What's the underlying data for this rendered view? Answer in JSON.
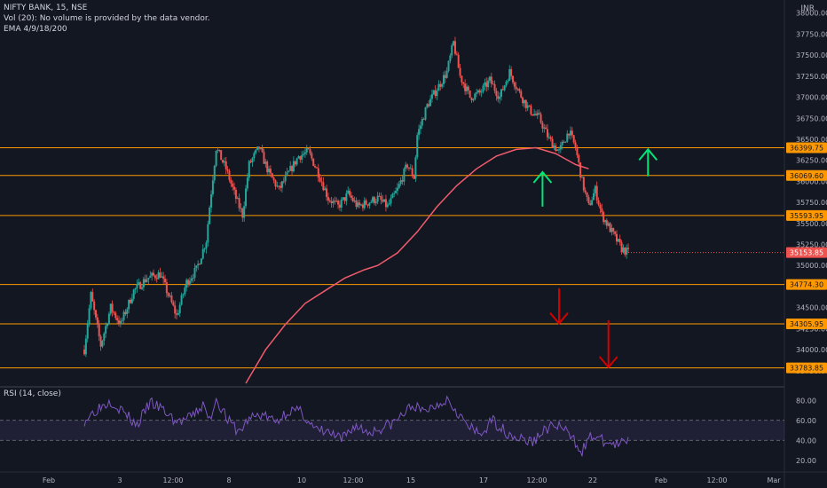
{
  "header": {
    "symbol_line": "NIFTY BANK, 15, NSE",
    "volume_line": "Vol (20): No volume is provided by the data vendor.",
    "ema_line": "EMA 4/9/18/200",
    "currency": "INR"
  },
  "rsi_panel": {
    "label": "RSI (14, close)",
    "ticks": [
      "80.00",
      "60.00",
      "40.00",
      "20.00"
    ],
    "upper_band": 60,
    "lower_band": 40
  },
  "colors": {
    "background": "#131722",
    "candle_up": "#26a69a",
    "candle_down": "#ef5350",
    "level_line": "#ff9800",
    "ema": "#f15b6c",
    "rsi": "#7e57c2",
    "arrow_up": "#00e676",
    "arrow_down": "#d50000"
  },
  "chart_data": {
    "type": "candlestick",
    "y_axis": {
      "min": 33600,
      "max": 38050,
      "ticks": [
        "38000.00",
        "37750.00",
        "37500.00",
        "37250.00",
        "37000.00",
        "36750.00",
        "36500.00",
        "36250.00",
        "36000.00",
        "35750.00",
        "35500.00",
        "35250.00",
        "35000.00",
        "34750.00",
        "34500.00",
        "34250.00",
        "34000.00",
        "33750.00"
      ]
    },
    "x_axis": {
      "labels": [
        "Feb",
        "3",
        "12:00",
        "8",
        "10",
        "12:00",
        "15",
        "17",
        "12:00",
        "22",
        "Feb",
        "12:00",
        "Mar"
      ]
    },
    "levels": [
      36399.75,
      36069.6,
      35593.95,
      34774.3,
      34305.95,
      33783.85
    ],
    "level_labels": [
      "36399.75",
      "36069.60",
      "35593.95",
      "34774.30",
      "34305.95",
      "33783.85"
    ],
    "last_price": 35153.85,
    "last_price_label": "35153.85",
    "price_path": [
      [
        0,
        34000
      ],
      [
        2,
        34650
      ],
      [
        5,
        34050
      ],
      [
        8,
        34500
      ],
      [
        11,
        34300
      ],
      [
        15,
        34700
      ],
      [
        19,
        34850
      ],
      [
        23,
        34900
      ],
      [
        25,
        34700
      ],
      [
        28,
        34400
      ],
      [
        31,
        34800
      ],
      [
        34,
        34950
      ],
      [
        37,
        35300
      ],
      [
        38,
        35700
      ],
      [
        40,
        36400
      ],
      [
        43,
        36150
      ],
      [
        46,
        35800
      ],
      [
        48,
        35600
      ],
      [
        50,
        36200
      ],
      [
        53,
        36400
      ],
      [
        56,
        36100
      ],
      [
        59,
        35900
      ],
      [
        62,
        36100
      ],
      [
        65,
        36300
      ],
      [
        68,
        36350
      ],
      [
        71,
        36100
      ],
      [
        74,
        35800
      ],
      [
        77,
        35700
      ],
      [
        80,
        35850
      ],
      [
        83,
        35700
      ],
      [
        86,
        35750
      ],
      [
        89,
        35800
      ],
      [
        92,
        35700
      ],
      [
        95,
        35900
      ],
      [
        98,
        36200
      ],
      [
        100,
        36050
      ],
      [
        101,
        36550
      ],
      [
        104,
        36900
      ],
      [
        107,
        37100
      ],
      [
        110,
        37300
      ],
      [
        112,
        37650
      ],
      [
        114,
        37250
      ],
      [
        117,
        37000
      ],
      [
        120,
        37050
      ],
      [
        123,
        37200
      ],
      [
        126,
        37000
      ],
      [
        129,
        37300
      ],
      [
        132,
        37050
      ],
      [
        135,
        36850
      ],
      [
        138,
        36750
      ],
      [
        141,
        36500
      ],
      [
        144,
        36350
      ],
      [
        147,
        36600
      ],
      [
        149,
        36400
      ],
      [
        151,
        36000
      ],
      [
        153,
        35700
      ],
      [
        155,
        35900
      ],
      [
        157,
        35600
      ],
      [
        160,
        35400
      ],
      [
        163,
        35200
      ],
      [
        165,
        35150
      ]
    ],
    "ema200": [
      [
        49,
        33600
      ],
      [
        55,
        34000
      ],
      [
        61,
        34300
      ],
      [
        67,
        34550
      ],
      [
        73,
        34700
      ],
      [
        79,
        34850
      ],
      [
        85,
        34950
      ],
      [
        89,
        35000
      ],
      [
        95,
        35150
      ],
      [
        101,
        35400
      ],
      [
        107,
        35700
      ],
      [
        113,
        35950
      ],
      [
        119,
        36150
      ],
      [
        125,
        36300
      ],
      [
        131,
        36380
      ],
      [
        137,
        36400
      ],
      [
        143,
        36330
      ],
      [
        149,
        36200
      ],
      [
        153,
        36150
      ]
    ],
    "arrows": [
      {
        "dir": "up",
        "x": 139,
        "y_from": 35700,
        "y_to": 36110
      },
      {
        "dir": "up",
        "x": 171,
        "y_from": 36060,
        "y_to": 36380
      },
      {
        "dir": "down",
        "x": 144,
        "y_from": 34730,
        "y_to": 34310
      },
      {
        "dir": "down",
        "x": 159,
        "y_from": 34350,
        "y_to": 33790
      }
    ],
    "rsi": [
      [
        0,
        60
      ],
      [
        4,
        72
      ],
      [
        8,
        80
      ],
      [
        12,
        68
      ],
      [
        16,
        55
      ],
      [
        20,
        78
      ],
      [
        24,
        70
      ],
      [
        28,
        58
      ],
      [
        32,
        62
      ],
      [
        36,
        75
      ],
      [
        38,
        60
      ],
      [
        40,
        82
      ],
      [
        44,
        58
      ],
      [
        47,
        48
      ],
      [
        50,
        62
      ],
      [
        54,
        66
      ],
      [
        58,
        58
      ],
      [
        62,
        70
      ],
      [
        66,
        68
      ],
      [
        70,
        50
      ],
      [
        74,
        48
      ],
      [
        78,
        40
      ],
      [
        82,
        55
      ],
      [
        86,
        48
      ],
      [
        90,
        52
      ],
      [
        94,
        58
      ],
      [
        98,
        70
      ],
      [
        100,
        76
      ],
      [
        102,
        68
      ],
      [
        106,
        74
      ],
      [
        110,
        82
      ],
      [
        113,
        70
      ],
      [
        116,
        55
      ],
      [
        120,
        45
      ],
      [
        124,
        60
      ],
      [
        128,
        48
      ],
      [
        132,
        42
      ],
      [
        136,
        38
      ],
      [
        140,
        52
      ],
      [
        144,
        55
      ],
      [
        148,
        42
      ],
      [
        151,
        30
      ],
      [
        154,
        45
      ],
      [
        158,
        38
      ],
      [
        162,
        35
      ],
      [
        165,
        40
      ]
    ]
  }
}
